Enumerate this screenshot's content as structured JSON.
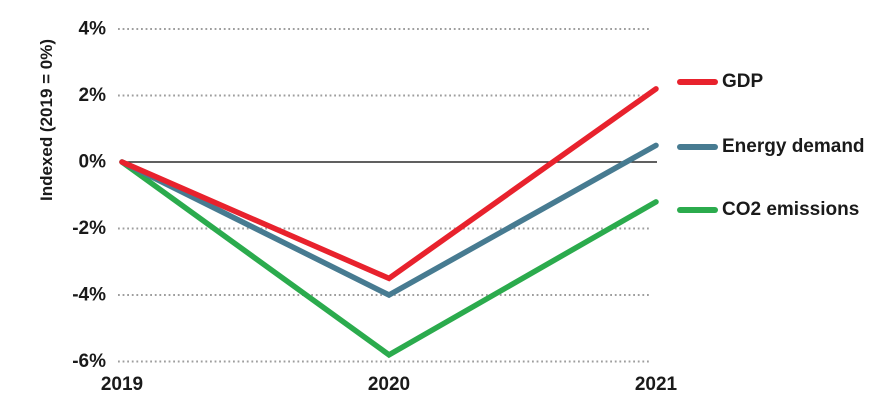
{
  "figure": {
    "background": "#ffffff",
    "text_color": "#1a1a1a"
  },
  "chart_data": {
    "type": "line",
    "x": [
      2019,
      2020,
      2021
    ],
    "x_tick_labels": [
      "2019",
      "2020",
      "2021"
    ],
    "series": [
      {
        "name": "GDP",
        "values": [
          0,
          -3.5,
          2.2
        ],
        "color": "#e8222d"
      },
      {
        "name": "Energy demand",
        "values": [
          0,
          -4.0,
          0.5
        ],
        "color": "#477b91"
      },
      {
        "name": "CO2 emissions",
        "values": [
          0,
          -5.8,
          -1.2
        ],
        "color": "#2bab4d"
      }
    ],
    "ylabel": "Indexed (2019 = 0%)",
    "xlabel": "",
    "title": "",
    "ylim": [
      -6.6,
      4.4
    ],
    "yticks": [
      4,
      2,
      0,
      -2,
      -4,
      -6
    ],
    "ytick_labels": [
      "4%",
      "2%",
      "0%",
      "-2%",
      "-4%",
      "-6%"
    ],
    "grid": "horizontal-dotted",
    "zero_line": true,
    "legend_position": "right",
    "colors": {
      "gridline": "#9e9e9e",
      "zero_line": "#2b2b2b"
    }
  }
}
